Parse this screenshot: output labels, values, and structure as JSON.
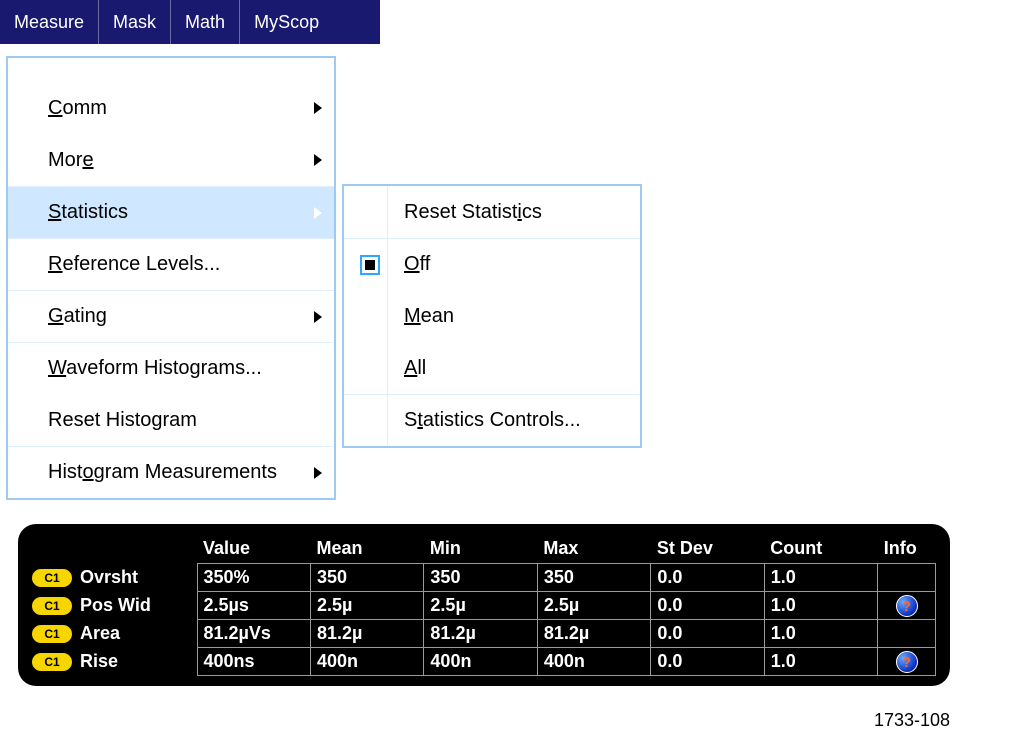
{
  "menubar": {
    "items": [
      "Measure",
      "Mask",
      "Math",
      "MyScop"
    ]
  },
  "dropdown": {
    "items": [
      {
        "label": "Comm",
        "u_index": 0,
        "arrow": true,
        "highlight": false,
        "border": false
      },
      {
        "label": "More",
        "u_index": 3,
        "arrow": true,
        "highlight": false,
        "border": false
      },
      {
        "label": "Statistics",
        "u_index": 0,
        "arrow": true,
        "highlight": true,
        "border": true
      },
      {
        "label": "Reference Levels...",
        "u_index": 0,
        "arrow": false,
        "highlight": false,
        "border": true
      },
      {
        "label": "Gating",
        "u_index": 0,
        "arrow": true,
        "highlight": false,
        "border": true
      },
      {
        "label": "Waveform Histograms...",
        "u_index": 0,
        "arrow": false,
        "highlight": false,
        "border": true
      },
      {
        "label": "Reset Histogram",
        "u_index": -1,
        "arrow": false,
        "highlight": false,
        "border": false
      },
      {
        "label": "Histogram Measurements",
        "u_index": 4,
        "arrow": true,
        "highlight": false,
        "border": true
      }
    ]
  },
  "submenu": {
    "items": [
      {
        "label": "Reset Statistics",
        "u_index": 13,
        "selected": false,
        "border": false
      },
      {
        "label": "Off",
        "u_index": 0,
        "selected": true,
        "border": true
      },
      {
        "label": "Mean",
        "u_index": 0,
        "selected": false,
        "border": false
      },
      {
        "label": "All",
        "u_index": 0,
        "selected": false,
        "border": false
      },
      {
        "label": "Statistics Controls...",
        "u_index": 1,
        "selected": false,
        "border": true
      }
    ]
  },
  "table": {
    "columns": [
      "Value",
      "Mean",
      "Min",
      "Max",
      "St Dev",
      "Count",
      "Info"
    ],
    "channel_badge": "C1",
    "badge_bg": "#f7d600",
    "badge_fg": "#000000",
    "rows": [
      {
        "name": "Ovrsht",
        "value": "350%",
        "mean": "350",
        "min": "350",
        "max": "350",
        "stdev": "0.0",
        "count": "1.0",
        "info": false
      },
      {
        "name": "Pos Wid",
        "value": "2.5µs",
        "mean": "2.5µ",
        "min": "2.5µ",
        "max": "2.5µ",
        "stdev": "0.0",
        "count": "1.0",
        "info": true
      },
      {
        "name": "Area",
        "value": "81.2µVs",
        "mean": "81.2µ",
        "min": "81.2µ",
        "max": "81.2µ",
        "stdev": "0.0",
        "count": "1.0",
        "info": false
      },
      {
        "name": "Rise",
        "value": "400ns",
        "mean": "400n",
        "min": "400n",
        "max": "400n",
        "stdev": "0.0",
        "count": "1.0",
        "info": true
      }
    ],
    "panel_bg": "#000000",
    "text_color": "#ffffff",
    "cell_border_color": "#9a9a9a"
  },
  "figure_label": "1733-108",
  "colors": {
    "menubar_bg": "#191970",
    "menubar_fg": "#ffffff",
    "menu_border": "#9fcaef",
    "menu_highlight_bg": "#cfe7ff",
    "menu_divider": "#dfefff"
  }
}
